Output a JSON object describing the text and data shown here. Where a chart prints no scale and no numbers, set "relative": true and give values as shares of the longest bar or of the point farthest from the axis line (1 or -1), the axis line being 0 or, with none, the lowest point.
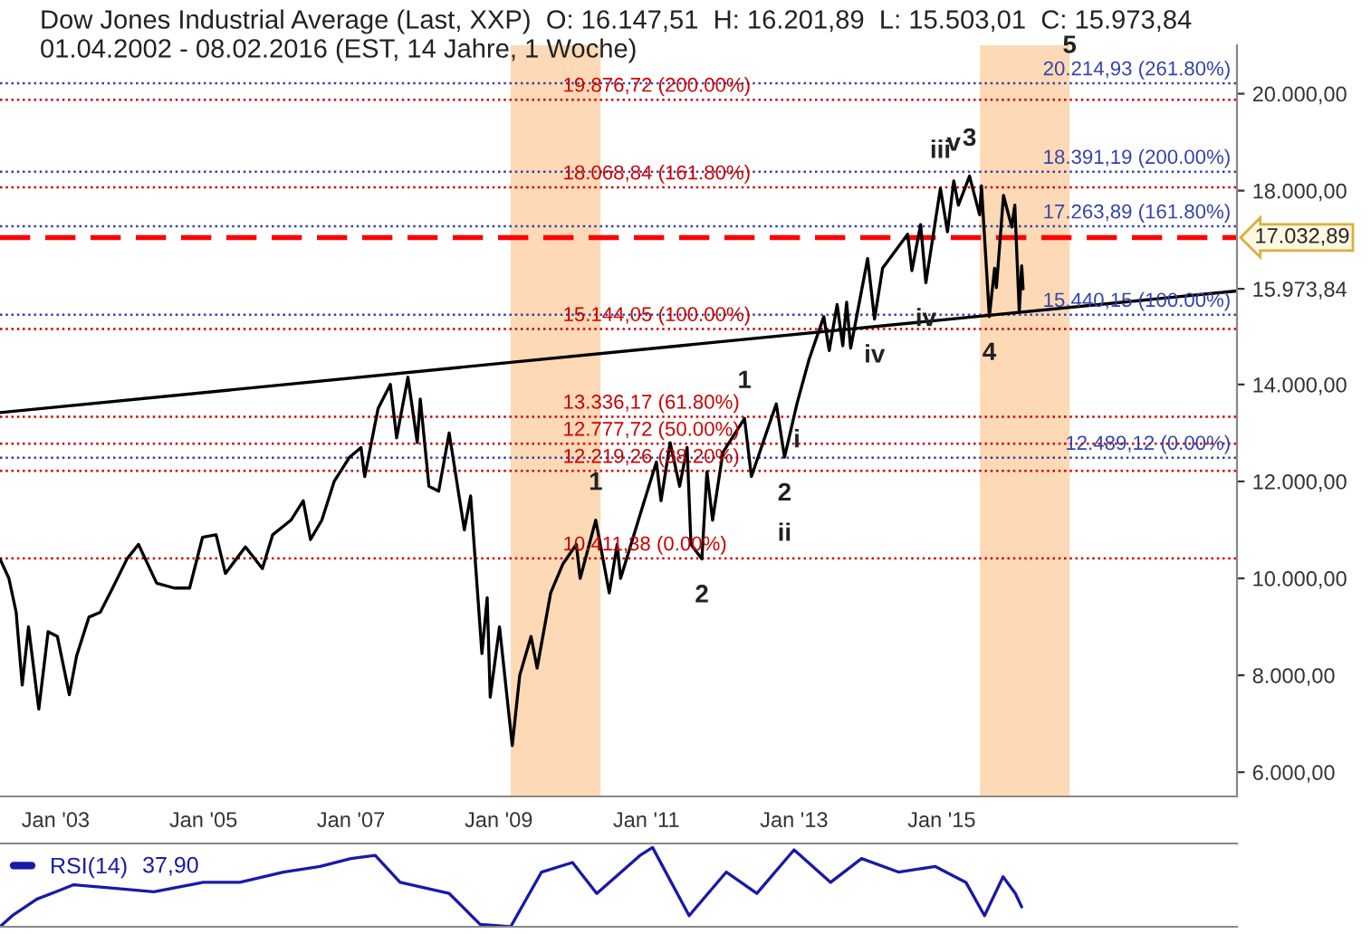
{
  "chart_data": [
    {
      "type": "line",
      "title": "Dow Jones Industrial Average (Last, XXP)  O: 16.147,51  H: 16.201,89  L: 15.503,01  C: 15.973,84",
      "subtitle": "01.04.2002 - 08.02.2016 (EST, 14 Jahre, 1 Woche)",
      "series": [
        {
          "color": "#000000",
          "x": [
            "2002-04-01",
            "2002-05-15",
            "2002-06-20",
            "2002-07-20",
            "2002-08-20",
            "2002-10-10",
            "2002-11-25",
            "2003-01-10",
            "2003-03-10",
            "2003-04-15",
            "2003-06-15",
            "2003-08-10",
            "2003-10-10",
            "2003-12-20",
            "2004-02-15",
            "2004-05-15",
            "2004-08-10",
            "2004-10-25",
            "2004-12-28",
            "2005-03-05",
            "2005-04-20",
            "2005-07-28",
            "2005-10-20",
            "2005-12-10",
            "2006-03-10",
            "2006-05-10",
            "2006-06-15",
            "2006-08-10",
            "2006-10-10",
            "2006-12-25",
            "2007-02-20",
            "2007-03-10",
            "2007-05-15",
            "2007-07-15",
            "2007-08-15",
            "2007-10-10",
            "2007-11-25",
            "2007-12-10",
            "2008-01-22",
            "2008-03-10",
            "2008-05-01",
            "2008-07-15",
            "2008-08-15",
            "2008-10-10",
            "2008-11-05",
            "2008-11-20",
            "2009-01-05",
            "2009-03-09",
            "2009-04-15",
            "2009-06-10",
            "2009-07-10",
            "2009-09-15",
            "2009-11-15",
            "2010-01-20",
            "2010-02-08",
            "2010-04-26",
            "2010-07-02",
            "2010-08-10",
            "2010-08-27",
            "2010-12-15",
            "2011-02-20",
            "2011-03-15",
            "2011-04-29",
            "2011-06-15",
            "2011-07-22",
            "2011-08-10",
            "2011-10-03",
            "2011-10-28",
            "2011-11-25",
            "2012-01-15",
            "2012-05-01",
            "2012-06-04",
            "2012-10-05",
            "2012-11-15",
            "2013-01-15",
            "2013-03-15",
            "2013-05-28",
            "2013-06-24",
            "2013-08-02",
            "2013-08-30",
            "2013-09-18",
            "2013-10-08",
            "2013-12-31",
            "2014-02-03",
            "2014-03-15",
            "2014-07-17",
            "2014-08-07",
            "2014-09-19",
            "2014-10-15",
            "2014-12-26",
            "2015-01-30",
            "2015-03-02",
            "2015-03-25",
            "2015-05-19",
            "2015-07-08",
            "2015-07-17",
            "2015-08-25",
            "2015-09-20",
            "2015-09-29",
            "2015-11-03",
            "2015-12-14",
            "2015-12-29",
            "2016-01-20",
            "2016-02-01",
            "2016-02-08"
          ],
          "values": [
            10400,
            10000,
            9300,
            7800,
            9000,
            7300,
            8900,
            8800,
            7600,
            8400,
            9200,
            9300,
            9800,
            10400,
            10700,
            9900,
            9800,
            9800,
            10850,
            10900,
            10100,
            10650,
            10200,
            10900,
            11200,
            11600,
            10800,
            11200,
            12000,
            12500,
            12700,
            12100,
            13500,
            14000,
            12900,
            14150,
            12800,
            13700,
            11900,
            11800,
            13000,
            11000,
            11700,
            8450,
            9600,
            7550,
            9000,
            6550,
            8000,
            8800,
            8150,
            9700,
            10300,
            10700,
            10000,
            11200,
            9700,
            10700,
            10000,
            11500,
            12400,
            11600,
            12800,
            11900,
            12700,
            10700,
            10400,
            12200,
            11200,
            12600,
            13300,
            12100,
            13600,
            12500,
            13600,
            14500,
            15400,
            14700,
            15650,
            14800,
            15700,
            14750,
            16600,
            15350,
            16400,
            17100,
            16350,
            17300,
            16100,
            18050,
            17150,
            18200,
            17700,
            18300,
            17500,
            18100,
            15400,
            16400,
            16000,
            17900,
            17250,
            17700,
            15500,
            16450,
            15973.84
          ]
        },
        {
          "type": "line",
          "color": "#000000",
          "x": [
            "2002-04-01",
            "2019-01-01"
          ],
          "values": [
            13420,
            15930
          ]
        }
      ],
      "xlim": [
        "2002-04-01",
        "2019-01-01"
      ],
      "xticks": [
        {
          "value": "2003-01-01",
          "label": "Jan '03"
        },
        {
          "value": "2005-01-01",
          "label": "Jan '05"
        },
        {
          "value": "2007-01-01",
          "label": "Jan '07"
        },
        {
          "value": "2009-01-01",
          "label": "Jan '09"
        },
        {
          "value": "2011-01-01",
          "label": "Jan '11"
        },
        {
          "value": "2013-01-01",
          "label": "Jan '13"
        },
        {
          "value": "2015-01-01",
          "label": "Jan '15"
        }
      ],
      "ylim": [
        5500,
        21000
      ],
      "yticks": [
        {
          "value": 6000,
          "label": "6.000,00"
        },
        {
          "value": 8000,
          "label": "8.000,00"
        },
        {
          "value": 10000,
          "label": "10.000,00"
        },
        {
          "value": 12000,
          "label": "12.000,00"
        },
        {
          "value": 14000,
          "label": "14.000,00"
        },
        {
          "value": 15973.84,
          "label": "15.973,84"
        },
        {
          "value": 18000,
          "label": "18.000,00"
        },
        {
          "value": 20000,
          "label": "20.000,00"
        }
      ],
      "ref_lines": [
        {
          "axis": "y",
          "value": 19876.72,
          "label": "19.876,72 (200.00%)",
          "color": "#cc0000",
          "line_style": "dotted"
        },
        {
          "axis": "y",
          "value": 18068.84,
          "label": "18.068,84 (161.80%)",
          "color": "#cc0000",
          "line_style": "dotted"
        },
        {
          "axis": "y",
          "value": 15144.05,
          "label": "15.144,05 (100.00%)",
          "color": "#cc0000",
          "line_style": "dotted"
        },
        {
          "axis": "y",
          "value": 13336.17,
          "label": "13.336,17 (61.80%)",
          "color": "#cc0000",
          "line_style": "dotted"
        },
        {
          "axis": "y",
          "value": 12777.72,
          "label": "12.777,72 (50.00%)",
          "color": "#cc0000",
          "line_style": "dotted"
        },
        {
          "axis": "y",
          "value": 12219.26,
          "label": "12.219,26 (38.20%)",
          "color": "#cc0000",
          "line_style": "dotted"
        },
        {
          "axis": "y",
          "value": 10411.38,
          "label": "10.411,38 (0.00%)",
          "color": "#cc0000",
          "line_style": "dotted"
        },
        {
          "axis": "y",
          "value": 20214.93,
          "label": "20.214,93 (261.80%)",
          "color": "#3344aa",
          "line_style": "dotted"
        },
        {
          "axis": "y",
          "value": 18391.19,
          "label": "18.391,19 (200.00%)",
          "color": "#3344aa",
          "line_style": "dotted"
        },
        {
          "axis": "y",
          "value": 17263.89,
          "label": "17.263,89 (161.80%)",
          "color": "#3344aa",
          "line_style": "dotted"
        },
        {
          "axis": "y",
          "value": 15440.15,
          "label": "15.440,15 (100.00%)",
          "color": "#3344aa",
          "line_style": "dotted"
        },
        {
          "axis": "y",
          "value": 12489.12,
          "label": "12.489,12 (0.00%)",
          "color": "#3344aa",
          "line_style": "dotted"
        },
        {
          "axis": "y",
          "value": 17032.89,
          "label": "17.032,89",
          "color": "#ff0000",
          "line_style": "dashed"
        }
      ],
      "bands": [
        {
          "axis": "x",
          "from": "2009-03-01",
          "to": "2010-05-20",
          "color": "#fdd9b5"
        },
        {
          "axis": "x",
          "from": "2015-07-10",
          "to": "2016-09-25",
          "color": "#fdd9b5"
        }
      ],
      "annotations": [
        {
          "text": "1",
          "x": "2010-04-26",
          "y": 11200
        },
        {
          "text": "2",
          "x": "2011-10-03",
          "y": 10400
        },
        {
          "text": "3",
          "x": "2015-05-19",
          "y": 18300
        },
        {
          "text": "4",
          "x": "2015-08-25",
          "y": 15400
        },
        {
          "text": "5",
          "x": "2016-09-25",
          "y": 20214.93
        },
        {
          "text": "1",
          "x": "2012-05-01",
          "y": 13300
        },
        {
          "text": "2",
          "x": "2012-11-15",
          "y": 12500
        },
        {
          "text": "i",
          "x": "2013-01-15",
          "y": 13600
        },
        {
          "text": "ii",
          "x": "2012-11-15",
          "y": 12500
        },
        {
          "text": "iii",
          "x": "2014-12-26",
          "y": 18050
        },
        {
          "text": "iv",
          "x": "2014-10-15",
          "y": 16100
        },
        {
          "text": "iv",
          "x": "2014-02-03",
          "y": 15350
        },
        {
          "text": "v",
          "x": "2015-03-02",
          "y": 18200
        }
      ],
      "grid": false
    },
    {
      "type": "line",
      "relative": true,
      "legend": "top left",
      "xlim": [
        "2002-04-01",
        "2019-01-01"
      ],
      "series": [
        {
          "name": "RSI(14)",
          "color": "#1a1aa6",
          "x": [
            "2002-04",
            "2002-06",
            "2002-10",
            "2003-01",
            "2003-04",
            "2003-10",
            "2004-05",
            "2005-01",
            "2005-07",
            "2006-02",
            "2006-08",
            "2007-01",
            "2007-05",
            "2007-09",
            "2008-05",
            "2008-10",
            "2009-03",
            "2009-08",
            "2010-01",
            "2010-05",
            "2010-12",
            "2011-02",
            "2011-08",
            "2012-02",
            "2012-07",
            "2013-01",
            "2013-07",
            "2013-12",
            "2014-06",
            "2014-12",
            "2015-05",
            "2015-08",
            "2015-11",
            "2016-01",
            "2016-02"
          ],
          "values": [
            0,
            0.14,
            0.35,
            0.44,
            0.53,
            0.49,
            0.44,
            0.56,
            0.56,
            0.69,
            0.76,
            0.86,
            0.9,
            0.56,
            0.42,
            0.03,
            0,
            0.69,
            0.81,
            0.42,
            0.9,
            1,
            0.14,
            0.69,
            0.42,
            0.97,
            0.56,
            0.86,
            0.69,
            0.76,
            0.56,
            0.14,
            0.63,
            0.42,
            0.25
          ]
        }
      ],
      "annotations": [
        "37,90"
      ]
    }
  ]
}
